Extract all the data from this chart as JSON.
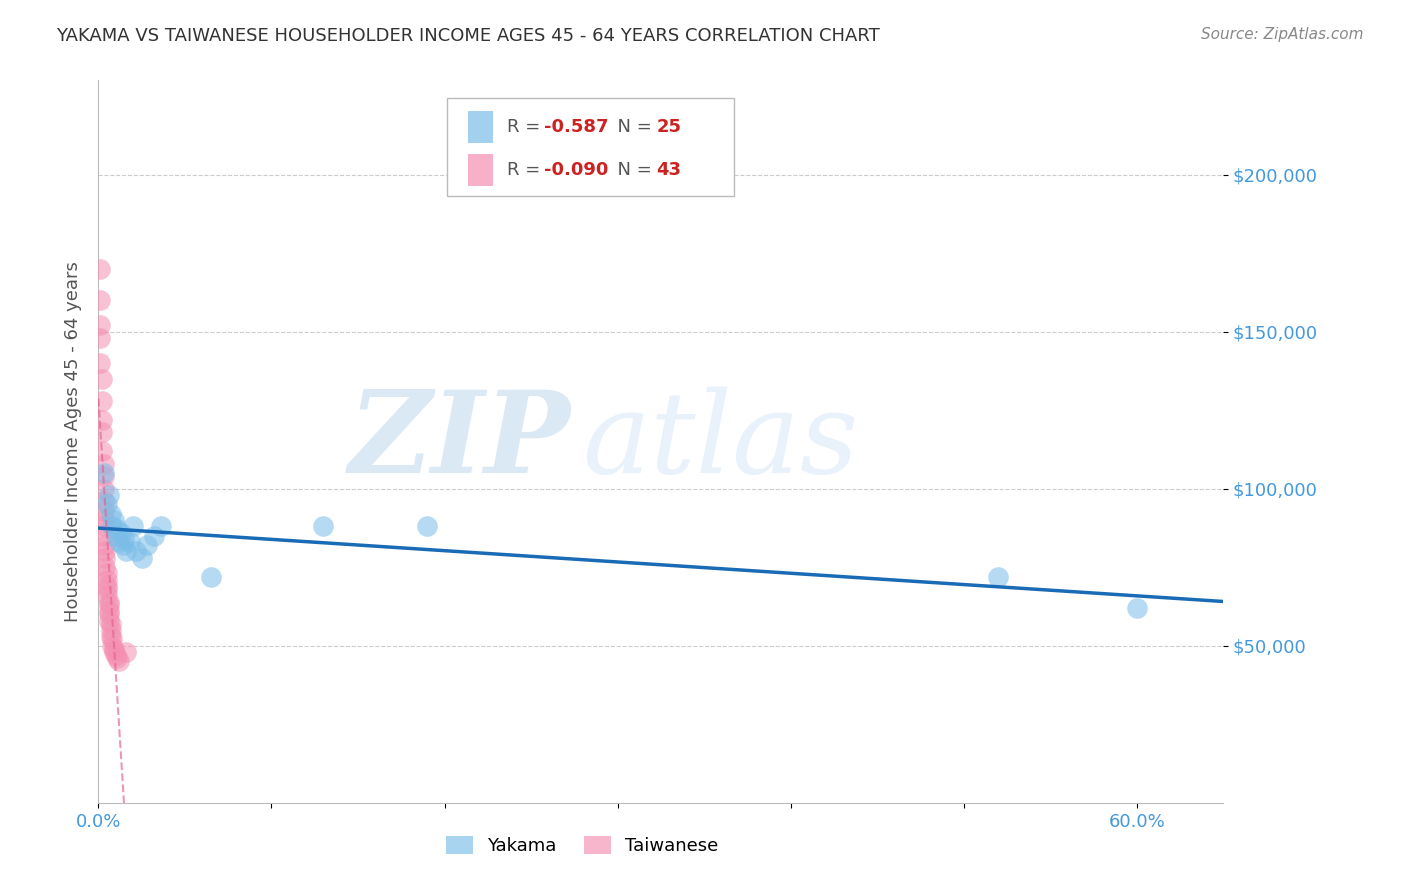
{
  "title": "YAKAMA VS TAIWANESE HOUSEHOLDER INCOME AGES 45 - 64 YEARS CORRELATION CHART",
  "source": "Source: ZipAtlas.com",
  "ylabel": "Householder Income Ages 45 - 64 years",
  "watermark_zip": "ZIP",
  "watermark_atlas": "atlas",
  "xlim": [
    0.0,
    0.65
  ],
  "ylim": [
    0,
    230000
  ],
  "yakama_R": -0.587,
  "yakama_N": 25,
  "taiwanese_R": -0.09,
  "taiwanese_N": 43,
  "yakama_color": "#7bbde8",
  "taiwanese_color": "#f48fb1",
  "trend_yakama_color": "#1a6bb5",
  "trend_taiwanese_color": "#e06090",
  "background_color": "#ffffff",
  "grid_color": "#cccccc",
  "title_color": "#333333",
  "yaxis_color": "#4499dd",
  "xaxis_color": "#4499dd",
  "yakama_x": [
    0.003,
    0.005,
    0.006,
    0.007,
    0.008,
    0.009,
    0.01,
    0.011,
    0.012,
    0.013,
    0.014,
    0.015,
    0.016,
    0.018,
    0.02,
    0.022,
    0.025,
    0.028,
    0.032,
    0.036,
    0.065,
    0.13,
    0.19,
    0.52,
    0.6
  ],
  "yakama_y": [
    105000,
    95000,
    98000,
    92000,
    88000,
    90000,
    85000,
    87000,
    83000,
    86000,
    82000,
    84000,
    80000,
    83000,
    88000,
    80000,
    78000,
    82000,
    85000,
    88000,
    72000,
    88000,
    88000,
    72000,
    62000
  ],
  "taiwanese_x": [
    0.001,
    0.001,
    0.001,
    0.001,
    0.001,
    0.002,
    0.002,
    0.002,
    0.002,
    0.002,
    0.003,
    0.003,
    0.003,
    0.003,
    0.003,
    0.003,
    0.003,
    0.003,
    0.004,
    0.004,
    0.004,
    0.004,
    0.005,
    0.005,
    0.005,
    0.005,
    0.005,
    0.006,
    0.006,
    0.006,
    0.006,
    0.006,
    0.007,
    0.007,
    0.007,
    0.008,
    0.008,
    0.009,
    0.009,
    0.01,
    0.011,
    0.012,
    0.016
  ],
  "taiwanese_y": [
    170000,
    160000,
    152000,
    148000,
    140000,
    135000,
    128000,
    122000,
    118000,
    112000,
    108000,
    104000,
    100000,
    96000,
    93000,
    90000,
    88000,
    85000,
    82000,
    80000,
    78000,
    75000,
    73000,
    71000,
    69000,
    68000,
    66000,
    64000,
    63000,
    61000,
    60000,
    58000,
    57000,
    55000,
    53000,
    52000,
    50000,
    49000,
    48000,
    47000,
    46000,
    45000,
    48000
  ]
}
